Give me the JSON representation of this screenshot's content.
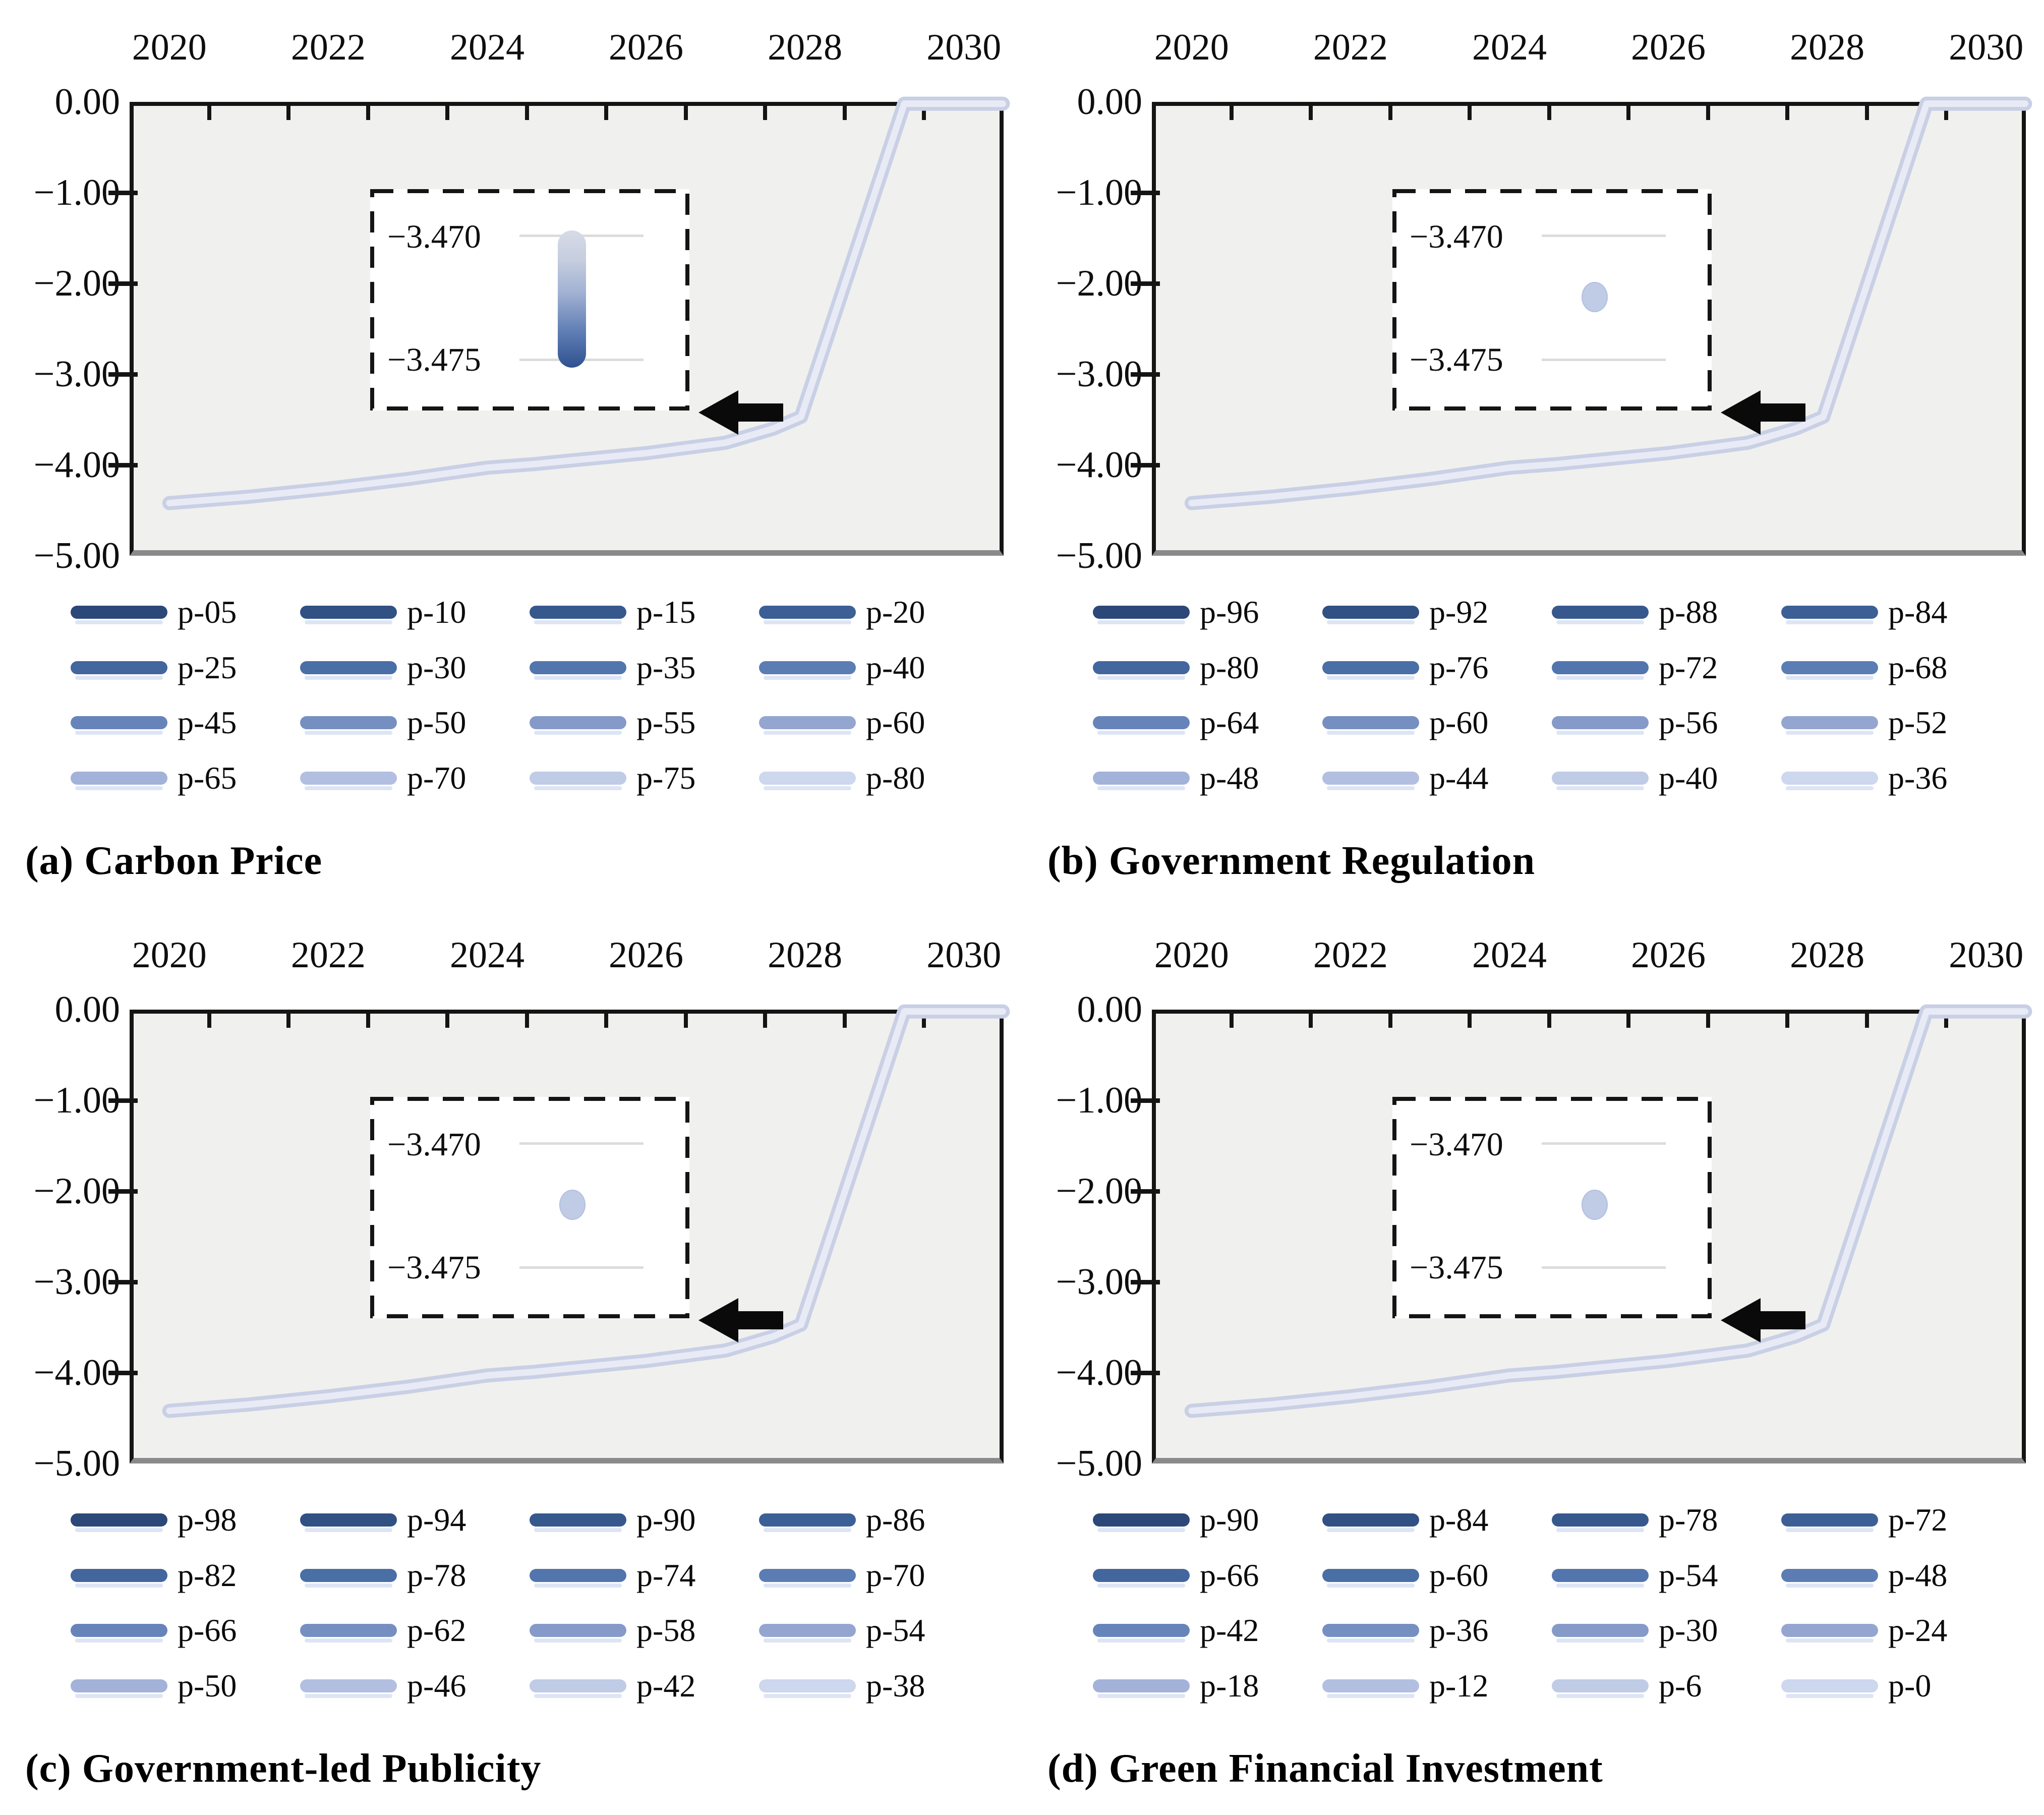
{
  "axes": {
    "x_tick_labels": [
      "2020",
      "2022",
      "2024",
      "2026",
      "2028",
      "2030"
    ],
    "x_range": [
      2020,
      2030
    ],
    "y_tick_labels": [
      "0.00",
      "−1.00",
      "−2.00",
      "−3.00",
      "−4.00",
      "−5.00"
    ],
    "ylim": [
      -5.0,
      0.0
    ],
    "grid": "off",
    "x_axis_position": "top"
  },
  "inset": {
    "tick_labels": [
      "−3.470",
      "−3.475"
    ],
    "ylim": [
      -3.475,
      -3.47
    ]
  },
  "colors": {
    "plot_background": "#f0f0ee",
    "frame_border": "#141414",
    "frame_bottom_border": "#8a8a8a",
    "curve_band_outer": "#c9d0e5",
    "curve_band_inner": "#e8ebf5",
    "inset_gridline": "#dcdcdc",
    "inset_dot": "#c0cbe5",
    "inset_capsule_top": "#d7dbe7",
    "inset_capsule_bottom": "#2f5190",
    "arrow": "#0a0a0a",
    "legend_ramp": [
      "#2c4878",
      "#315083",
      "#36588d",
      "#3c5f96",
      "#43669e",
      "#4a6ea6",
      "#5275ad",
      "#5b7db4",
      "#6784ba",
      "#768fc1",
      "#859ac8",
      "#94a6d0",
      "#a3b2d8",
      "#b2bfe0",
      "#c0cbe6",
      "#cdd7ee"
    ]
  },
  "panels": [
    {
      "id": "a",
      "caption": "(a) Carbon Price",
      "inset_marker": "gradient-bar",
      "legend": [
        "p-05",
        "p-10",
        "p-15",
        "p-20",
        "p-25",
        "p-30",
        "p-35",
        "p-40",
        "p-45",
        "p-50",
        "p-55",
        "p-60",
        "p-65",
        "p-70",
        "p-75",
        "p-80"
      ]
    },
    {
      "id": "b",
      "caption": "(b) Government Regulation",
      "inset_marker": "dot",
      "legend": [
        "p-96",
        "p-92",
        "p-88",
        "p-84",
        "p-80",
        "p-76",
        "p-72",
        "p-68",
        "p-64",
        "p-60",
        "p-56",
        "p-52",
        "p-48",
        "p-44",
        "p-40",
        "p-36"
      ]
    },
    {
      "id": "c",
      "caption": "(c) Government-led Publicity",
      "inset_marker": "dot",
      "legend": [
        "p-98",
        "p-94",
        "p-90",
        "p-86",
        "p-82",
        "p-78",
        "p-74",
        "p-70",
        "p-66",
        "p-62",
        "p-58",
        "p-54",
        "p-50",
        "p-46",
        "p-42",
        "p-38"
      ]
    },
    {
      "id": "d",
      "caption": "(d) Green Financial Investment",
      "inset_marker": "dot",
      "legend": [
        "p-90",
        "p-84",
        "p-78",
        "p-72",
        "p-66",
        "p-60",
        "p-54",
        "p-48",
        "p-42",
        "p-36",
        "p-30",
        "p-24",
        "p-18",
        "p-12",
        "p-6",
        "p-0"
      ]
    }
  ],
  "chart_data": [
    {
      "panel": "a",
      "type": "line",
      "title": "(a) Carbon Price",
      "xlabel": "",
      "ylabel": "",
      "x": [
        2020,
        2021,
        2022,
        2023,
        2024,
        2025,
        2026,
        2027,
        2028,
        2029,
        2030
      ],
      "series_labels": [
        "p-05",
        "p-10",
        "p-15",
        "p-20",
        "p-25",
        "p-30",
        "p-35",
        "p-40",
        "p-45",
        "p-50",
        "p-55",
        "p-60",
        "p-65",
        "p-70",
        "p-75",
        "p-80"
      ],
      "series_overlap": true,
      "values_all_series": [
        -4.42,
        -4.35,
        -4.26,
        -4.15,
        -4.03,
        -3.96,
        -3.87,
        -3.75,
        -3.45,
        -0.65,
        0.0
      ],
      "ylim": [
        -5.0,
        0.0
      ],
      "legend_position": "bottom",
      "inset": {
        "ylim": [
          -3.475,
          -3.47
        ],
        "tick_labels": [
          "−3.470",
          "−3.475"
        ],
        "marker": "gradient-bar",
        "magnified_x": 2025
      }
    },
    {
      "panel": "b",
      "type": "line",
      "title": "(b) Government Regulation",
      "xlabel": "",
      "ylabel": "",
      "x": [
        2020,
        2021,
        2022,
        2023,
        2024,
        2025,
        2026,
        2027,
        2028,
        2029,
        2030
      ],
      "series_labels": [
        "p-96",
        "p-92",
        "p-88",
        "p-84",
        "p-80",
        "p-76",
        "p-72",
        "p-68",
        "p-64",
        "p-60",
        "p-56",
        "p-52",
        "p-48",
        "p-44",
        "p-40",
        "p-36"
      ],
      "series_overlap": true,
      "values_all_series": [
        -4.42,
        -4.35,
        -4.26,
        -4.15,
        -4.03,
        -3.96,
        -3.87,
        -3.75,
        -3.45,
        -0.65,
        0.0
      ],
      "ylim": [
        -5.0,
        0.0
      ],
      "legend_position": "bottom",
      "inset": {
        "ylim": [
          -3.475,
          -3.47
        ],
        "tick_labels": [
          "−3.470",
          "−3.475"
        ],
        "marker": "dot",
        "magnified_x": 2025
      }
    },
    {
      "panel": "c",
      "type": "line",
      "title": "(c) Government-led Publicity",
      "xlabel": "",
      "ylabel": "",
      "x": [
        2020,
        2021,
        2022,
        2023,
        2024,
        2025,
        2026,
        2027,
        2028,
        2029,
        2030
      ],
      "series_labels": [
        "p-98",
        "p-94",
        "p-90",
        "p-86",
        "p-82",
        "p-78",
        "p-74",
        "p-70",
        "p-66",
        "p-62",
        "p-58",
        "p-54",
        "p-50",
        "p-46",
        "p-42",
        "p-38"
      ],
      "series_overlap": true,
      "values_all_series": [
        -4.42,
        -4.35,
        -4.26,
        -4.15,
        -4.03,
        -3.96,
        -3.87,
        -3.75,
        -3.45,
        -0.65,
        0.0
      ],
      "ylim": [
        -5.0,
        0.0
      ],
      "legend_position": "bottom",
      "inset": {
        "ylim": [
          -3.475,
          -3.47
        ],
        "tick_labels": [
          "−3.470",
          "−3.475"
        ],
        "marker": "dot",
        "magnified_x": 2025
      }
    },
    {
      "panel": "d",
      "type": "line",
      "title": "(d) Green Financial Investment",
      "xlabel": "",
      "ylabel": "",
      "x": [
        2020,
        2021,
        2022,
        2023,
        2024,
        2025,
        2026,
        2027,
        2028,
        2029,
        2030
      ],
      "series_labels": [
        "p-90",
        "p-84",
        "p-78",
        "p-72",
        "p-66",
        "p-60",
        "p-54",
        "p-48",
        "p-42",
        "p-36",
        "p-30",
        "p-24",
        "p-18",
        "p-12",
        "p-6",
        "p-0"
      ],
      "series_overlap": true,
      "values_all_series": [
        -4.42,
        -4.35,
        -4.26,
        -4.15,
        -4.03,
        -3.96,
        -3.87,
        -3.75,
        -3.45,
        -0.65,
        0.0
      ],
      "ylim": [
        -5.0,
        0.0
      ],
      "legend_position": "bottom",
      "inset": {
        "ylim": [
          -3.475,
          -3.47
        ],
        "tick_labels": [
          "−3.470",
          "−3.475"
        ],
        "marker": "dot",
        "magnified_x": 2025
      }
    }
  ],
  "curve_points": [
    [
      2020,
      -4.42
    ],
    [
      2021,
      -4.35
    ],
    [
      2022,
      -4.26
    ],
    [
      2023,
      -4.155
    ],
    [
      2024,
      -4.03
    ],
    [
      2024.6,
      -3.99
    ],
    [
      2025,
      -3.955
    ],
    [
      2026,
      -3.87
    ],
    [
      2027,
      -3.755
    ],
    [
      2027.6,
      -3.6
    ],
    [
      2027.95,
      -3.47
    ],
    [
      2029.25,
      -0.02
    ],
    [
      2030.49,
      -0.02
    ]
  ]
}
